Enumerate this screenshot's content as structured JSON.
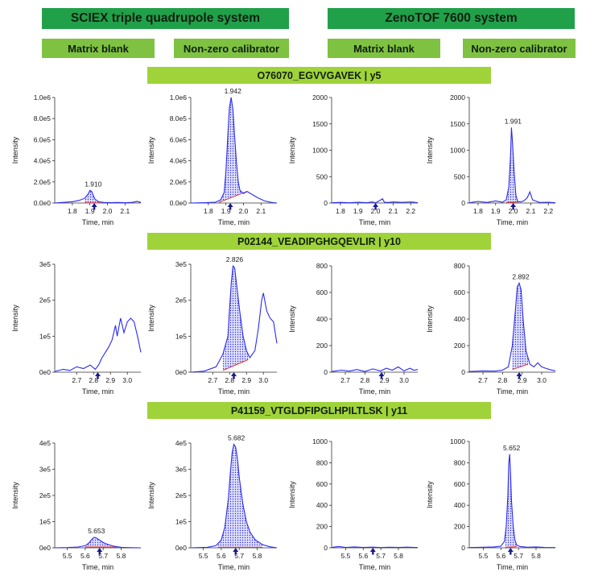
{
  "systems": [
    "SCIEX triple quadrupole system",
    "ZenoTOF 7600 system"
  ],
  "conditions": [
    "Matrix blank",
    "Non-zero calibrator",
    "Matrix blank",
    "Non-zero calibrator"
  ],
  "peptides": [
    "O76070_EGVVGAVEK | y5",
    "P02144_VEADIPGHGQEVLIR | y10",
    "P41159_VTGLDFIPGLHPILTLSK | y11"
  ],
  "colors": {
    "trace": "#2a2af0",
    "baseline": "#e83030",
    "marker": "#1a1a8a",
    "system_bar": "#21a04a",
    "condition_bar": "#7fc241",
    "peptide_bar": "#a0d33a"
  },
  "chart_data": [
    {
      "type": "line",
      "peptide": "O76070_EGVVGAVEK | y5",
      "condition": "Matrix blank",
      "system": "SCIEX triple quadrupole system",
      "xlabel": "Time, min",
      "ylabel": "Intensity",
      "xlim": [
        1.7,
        2.19
      ],
      "ylim": [
        0,
        1000000
      ],
      "xticks": [
        1.8,
        1.9,
        2.0,
        2.1
      ],
      "xtick_labels": [
        "1.8",
        "1.9",
        "2.0",
        "2.1"
      ],
      "yticks": [
        0,
        200000,
        400000,
        600000,
        800000,
        1000000
      ],
      "ytick_labels": [
        "0.0e0",
        "2.0e5",
        "4.0e5",
        "6.0e5",
        "8.0e5",
        "1.0e6"
      ],
      "x": [
        1.7,
        1.75,
        1.8,
        1.84,
        1.87,
        1.89,
        1.9,
        1.91,
        1.92,
        1.93,
        1.95,
        1.98,
        2.02,
        2.06,
        2.1,
        2.14,
        2.17,
        2.19
      ],
      "y": [
        0,
        6000,
        12000,
        25000,
        45000,
        85000,
        120000,
        110000,
        70000,
        35000,
        12000,
        5000,
        3000,
        5000,
        2000,
        6000,
        15000,
        5000
      ],
      "peak": {
        "label": "1.910",
        "x": 1.91,
        "y": 120000,
        "from": 1.87,
        "to": 1.96,
        "base_start": 2000,
        "base_end": 1000
      },
      "marker_x": 1.925
    },
    {
      "type": "line",
      "peptide": "O76070_EGVVGAVEK | y5",
      "condition": "Non-zero calibrator",
      "system": "SCIEX triple quadrupole system",
      "xlabel": "Time, min",
      "ylabel": "Intensity",
      "xlim": [
        1.7,
        2.19
      ],
      "ylim": [
        0,
        1000000
      ],
      "xticks": [
        1.8,
        1.9,
        2.0,
        2.1
      ],
      "xtick_labels": [
        "1.8",
        "1.9",
        "2.0",
        "2.1"
      ],
      "yticks": [
        0,
        200000,
        400000,
        600000,
        800000,
        1000000
      ],
      "ytick_labels": [
        "0.0e0",
        "2.0e5",
        "4.0e5",
        "6.0e5",
        "8.0e5",
        "1.0e6"
      ],
      "x": [
        1.7,
        1.78,
        1.84,
        1.87,
        1.89,
        1.9,
        1.91,
        1.92,
        1.93,
        1.94,
        1.95,
        1.96,
        1.97,
        1.98,
        2.0,
        2.02,
        2.05,
        2.08,
        2.12,
        2.16,
        2.19
      ],
      "y": [
        0,
        3000,
        8000,
        30000,
        100000,
        300000,
        620000,
        900000,
        1000000,
        880000,
        620000,
        380000,
        200000,
        120000,
        90000,
        110000,
        80000,
        50000,
        20000,
        5000,
        0
      ],
      "peak": {
        "label": "1.942",
        "x": 1.93,
        "y": 1000000,
        "from": 1.86,
        "to": 2.02,
        "base_start": 5000,
        "base_end": 110000
      },
      "marker_x": 1.925
    },
    {
      "type": "line",
      "peptide": "O76070_EGVVGAVEK | y5",
      "condition": "Matrix blank",
      "system": "ZenoTOF 7600 system",
      "xlabel": "Time, min",
      "ylabel": "Intensity",
      "xlim": [
        1.75,
        2.24
      ],
      "ylim": [
        0,
        2000
      ],
      "xticks": [
        1.8,
        1.9,
        2.0,
        2.1,
        2.2
      ],
      "xtick_labels": [
        "1.8",
        "1.9",
        "2.0",
        "2.1",
        "2.2"
      ],
      "yticks": [
        0,
        500,
        1000,
        1500,
        2000
      ],
      "ytick_labels": [
        "0",
        "500",
        "1000",
        "1500",
        "2000"
      ],
      "x": [
        1.75,
        1.8,
        1.85,
        1.9,
        1.95,
        1.98,
        2.0,
        2.02,
        2.04,
        2.05,
        2.07,
        2.1,
        2.15,
        2.2,
        2.24
      ],
      "y": [
        5,
        12,
        5,
        15,
        8,
        20,
        5,
        40,
        80,
        15,
        10,
        20,
        12,
        20,
        8
      ],
      "peak": null,
      "marker_x": 2.0
    },
    {
      "type": "line",
      "peptide": "O76070_EGVVGAVEK | y5",
      "condition": "Non-zero calibrator",
      "system": "ZenoTOF 7600 system",
      "xlabel": "Time, min",
      "ylabel": "Intensity",
      "xlim": [
        1.75,
        2.24
      ],
      "ylim": [
        0,
        2000
      ],
      "xticks": [
        1.8,
        1.9,
        2.0,
        2.1,
        2.2
      ],
      "xtick_labels": [
        "1.8",
        "1.9",
        "2.0",
        "2.1",
        "2.2"
      ],
      "yticks": [
        0,
        500,
        1000,
        1500,
        2000
      ],
      "ytick_labels": [
        "0",
        "500",
        "1000",
        "1500",
        "2000"
      ],
      "x": [
        1.75,
        1.8,
        1.85,
        1.9,
        1.94,
        1.96,
        1.975,
        1.985,
        1.99,
        1.995,
        2.005,
        2.015,
        2.025,
        2.04,
        2.06,
        2.08,
        2.095,
        2.11,
        2.15,
        2.2,
        2.24
      ],
      "y": [
        5,
        30,
        10,
        40,
        15,
        60,
        300,
        900,
        1430,
        1200,
        600,
        150,
        30,
        20,
        40,
        100,
        210,
        60,
        10,
        15,
        5
      ],
      "peak": {
        "label": "1.991",
        "x": 1.99,
        "y": 1430,
        "from": 1.96,
        "to": 2.03,
        "base_start": 10,
        "base_end": 20
      },
      "marker_x": 2.0
    },
    {
      "type": "line",
      "peptide": "P02144_VEADIPGHGQEVLIR | y10",
      "condition": "Matrix blank",
      "system": "SCIEX triple quadrupole system",
      "xlabel": "Time, min",
      "ylabel": "Intensity",
      "xlim": [
        2.57,
        3.08
      ],
      "ylim": [
        0,
        300000
      ],
      "xticks": [
        2.7,
        2.8,
        2.9,
        3.0
      ],
      "xtick_labels": [
        "2.7",
        "2.8",
        "2.9",
        "3.0"
      ],
      "yticks": [
        0,
        100000,
        200000,
        300000
      ],
      "ytick_labels": [
        "0e0",
        "1e5",
        "2e5",
        "3e5"
      ],
      "x": [
        2.57,
        2.62,
        2.66,
        2.7,
        2.74,
        2.78,
        2.81,
        2.83,
        2.85,
        2.87,
        2.89,
        2.91,
        2.93,
        2.94,
        2.95,
        2.96,
        2.98,
        3.0,
        3.02,
        3.04,
        3.06,
        3.08
      ],
      "y": [
        2000,
        8000,
        5000,
        15000,
        10000,
        20000,
        8000,
        20000,
        40000,
        55000,
        70000,
        90000,
        130000,
        100000,
        125000,
        150000,
        110000,
        140000,
        150000,
        140000,
        100000,
        55000
      ],
      "peak": null,
      "marker_x": 2.825
    },
    {
      "type": "line",
      "peptide": "P02144_VEADIPGHGQEVLIR | y10",
      "condition": "Non-zero calibrator",
      "system": "SCIEX triple quadrupole system",
      "xlabel": "Time, min",
      "ylabel": "Intensity",
      "xlim": [
        2.57,
        3.08
      ],
      "ylim": [
        0,
        300000
      ],
      "xticks": [
        2.7,
        2.8,
        2.9,
        3.0
      ],
      "xtick_labels": [
        "2.7",
        "2.8",
        "2.9",
        "3.0"
      ],
      "yticks": [
        0,
        100000,
        200000,
        300000
      ],
      "ytick_labels": [
        "0e0",
        "1e5",
        "2e5",
        "3e5"
      ],
      "x": [
        2.57,
        2.65,
        2.72,
        2.76,
        2.79,
        2.8,
        2.81,
        2.82,
        2.83,
        2.84,
        2.86,
        2.88,
        2.9,
        2.92,
        2.95,
        2.97,
        2.99,
        3.0,
        3.02,
        3.04,
        3.06,
        3.08
      ],
      "y": [
        0,
        3000,
        15000,
        50000,
        100000,
        180000,
        250000,
        295000,
        290000,
        250000,
        170000,
        100000,
        60000,
        40000,
        60000,
        120000,
        200000,
        220000,
        170000,
        150000,
        140000,
        80000
      ],
      "peak": {
        "label": "2.826",
        "x": 2.82,
        "y": 295000,
        "from": 2.76,
        "to": 2.91,
        "base_start": 5000,
        "base_end": 35000
      },
      "marker_x": 2.825
    },
    {
      "type": "line",
      "peptide": "P02144_VEADIPGHGQEVLIR | y10",
      "condition": "Matrix blank",
      "system": "ZenoTOF 7600 system",
      "xlabel": "Time, min",
      "ylabel": "Intensity",
      "xlim": [
        2.63,
        3.07
      ],
      "ylim": [
        0,
        800
      ],
      "xticks": [
        2.7,
        2.8,
        2.9,
        3.0
      ],
      "xtick_labels": [
        "2.7",
        "2.8",
        "2.9",
        "3.0"
      ],
      "yticks": [
        0,
        200,
        400,
        600,
        800
      ],
      "ytick_labels": [
        "0",
        "200",
        "400",
        "600",
        "800"
      ],
      "x": [
        2.63,
        2.68,
        2.72,
        2.76,
        2.8,
        2.84,
        2.88,
        2.91,
        2.94,
        2.97,
        3.0,
        3.03,
        3.05,
        3.07
      ],
      "y": [
        5,
        15,
        8,
        20,
        5,
        25,
        10,
        30,
        15,
        40,
        10,
        30,
        15,
        20
      ],
      "peak": null,
      "marker_x": 2.885
    },
    {
      "type": "line",
      "peptide": "P02144_VEADIPGHGQEVLIR | y10",
      "condition": "Non-zero calibrator",
      "system": "ZenoTOF 7600 system",
      "xlabel": "Time, min",
      "ylabel": "Intensity",
      "xlim": [
        2.63,
        3.07
      ],
      "ylim": [
        0,
        800
      ],
      "xticks": [
        2.7,
        2.8,
        2.9,
        3.0
      ],
      "xtick_labels": [
        "2.7",
        "2.8",
        "2.9",
        "3.0"
      ],
      "yticks": [
        0,
        200,
        400,
        600,
        800
      ],
      "ytick_labels": [
        "0",
        "200",
        "400",
        "600",
        "800"
      ],
      "x": [
        2.63,
        2.7,
        2.76,
        2.8,
        2.83,
        2.85,
        2.865,
        2.875,
        2.885,
        2.895,
        2.905,
        2.92,
        2.94,
        2.96,
        2.98,
        3.0,
        3.02,
        3.04,
        3.07
      ],
      "y": [
        5,
        10,
        8,
        15,
        40,
        200,
        450,
        640,
        670,
        620,
        400,
        160,
        60,
        40,
        70,
        40,
        30,
        20,
        10
      ],
      "peak": {
        "label": "2.892",
        "x": 2.885,
        "y": 670,
        "from": 2.85,
        "to": 2.93,
        "base_start": 20,
        "base_end": 60
      },
      "marker_x": 2.885
    },
    {
      "type": "line",
      "peptide": "P41159_VTGLDFIPGLHPILTLSK | y11",
      "condition": "Matrix blank",
      "system": "SCIEX triple quadrupole system",
      "xlabel": "Time, min",
      "ylabel": "Intensity",
      "xlim": [
        5.43,
        5.91
      ],
      "ylim": [
        0,
        400000
      ],
      "xticks": [
        5.5,
        5.6,
        5.7,
        5.8
      ],
      "xtick_labels": [
        "5.5",
        "5.6",
        "5.7",
        "5.8"
      ],
      "yticks": [
        0,
        100000,
        200000,
        300000,
        400000
      ],
      "ytick_labels": [
        "0e0",
        "1e5",
        "2e5",
        "3e5",
        "4e5"
      ],
      "x": [
        5.43,
        5.5,
        5.56,
        5.6,
        5.62,
        5.64,
        5.65,
        5.66,
        5.68,
        5.7,
        5.73,
        5.76,
        5.8,
        5.85,
        5.91
      ],
      "y": [
        0,
        1000,
        3000,
        8000,
        18000,
        35000,
        40000,
        38000,
        30000,
        20000,
        12000,
        6000,
        2000,
        500,
        0
      ],
      "peak": {
        "label": "5.653",
        "x": 5.653,
        "y": 40000,
        "from": 5.6,
        "to": 5.78,
        "base_start": 3000,
        "base_end": 3000
      },
      "marker_x": 5.68
    },
    {
      "type": "line",
      "peptide": "P41159_VTGLDFIPGLHPILTLSK | y11",
      "condition": "Non-zero calibrator",
      "system": "SCIEX triple quadrupole system",
      "xlabel": "Time, min",
      "ylabel": "Intensity",
      "xlim": [
        5.43,
        5.91
      ],
      "ylim": [
        0,
        400000
      ],
      "xticks": [
        5.5,
        5.6,
        5.7,
        5.8
      ],
      "xtick_labels": [
        "5.5",
        "5.6",
        "5.7",
        "5.8"
      ],
      "yticks": [
        0,
        100000,
        200000,
        300000,
        400000
      ],
      "ytick_labels": [
        "0e0",
        "1e5",
        "2e5",
        "3e5",
        "4e5"
      ],
      "x": [
        5.43,
        5.52,
        5.57,
        5.6,
        5.62,
        5.64,
        5.65,
        5.66,
        5.67,
        5.68,
        5.69,
        5.7,
        5.72,
        5.74,
        5.76,
        5.79,
        5.83,
        5.87,
        5.91
      ],
      "y": [
        0,
        2000,
        8000,
        30000,
        80000,
        190000,
        280000,
        360000,
        395000,
        385000,
        340000,
        270000,
        170000,
        100000,
        60000,
        30000,
        12000,
        4000,
        0
      ],
      "peak": {
        "label": "5.682",
        "x": 5.675,
        "y": 395000,
        "from": 5.58,
        "to": 5.83,
        "base_start": 2000,
        "base_end": 2000
      },
      "marker_x": 5.68
    },
    {
      "type": "line",
      "peptide": "P41159_VTGLDFIPGLHPILTLSK | y11",
      "condition": "Matrix blank",
      "system": "ZenoTOF 7600 system",
      "xlabel": "Time, min",
      "ylabel": "Intensity",
      "xlim": [
        5.42,
        5.91
      ],
      "ylim": [
        0,
        1000
      ],
      "xticks": [
        5.5,
        5.6,
        5.7,
        5.8
      ],
      "xtick_labels": [
        "5.5",
        "5.6",
        "5.7",
        "5.8"
      ],
      "yticks": [
        0,
        200,
        400,
        600,
        800,
        1000
      ],
      "ytick_labels": [
        "0",
        "200",
        "400",
        "600",
        "800",
        "1000"
      ],
      "x": [
        5.42,
        5.46,
        5.5,
        5.55,
        5.6,
        5.65,
        5.7,
        5.75,
        5.8,
        5.85,
        5.91
      ],
      "y": [
        3,
        12,
        4,
        8,
        3,
        6,
        2,
        5,
        3,
        6,
        2
      ],
      "peak": null,
      "marker_x": 5.655
    },
    {
      "type": "line",
      "peptide": "P41159_VTGLDFIPGLHPILTLSK | y11",
      "condition": "Non-zero calibrator",
      "system": "ZenoTOF 7600 system",
      "xlabel": "Time, min",
      "ylabel": "Intensity",
      "xlim": [
        5.42,
        5.91
      ],
      "ylim": [
        0,
        1000
      ],
      "xticks": [
        5.5,
        5.6,
        5.7,
        5.8
      ],
      "xtick_labels": [
        "5.5",
        "5.6",
        "5.7",
        "5.8"
      ],
      "yticks": [
        0,
        200,
        400,
        600,
        800,
        1000
      ],
      "ytick_labels": [
        "0",
        "200",
        "400",
        "600",
        "800",
        "1000"
      ],
      "x": [
        5.42,
        5.5,
        5.56,
        5.6,
        5.62,
        5.63,
        5.64,
        5.645,
        5.65,
        5.655,
        5.66,
        5.67,
        5.68,
        5.69,
        5.71,
        5.75,
        5.8,
        5.85,
        5.91
      ],
      "y": [
        2,
        5,
        8,
        15,
        60,
        200,
        500,
        800,
        880,
        700,
        450,
        200,
        70,
        25,
        12,
        5,
        8,
        3,
        2
      ],
      "peak": {
        "label": "5.652",
        "x": 5.652,
        "y": 880,
        "from": 5.625,
        "to": 5.69,
        "base_start": 5,
        "base_end": 10
      },
      "marker_x": 5.655
    }
  ]
}
